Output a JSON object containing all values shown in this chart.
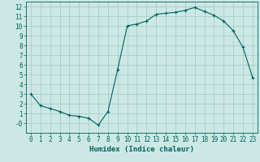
{
  "xlabel": "Humidex (Indice chaleur)",
  "ylabel": "",
  "background_color": "#cce8e4",
  "grid_color": "#aaccca",
  "line_color": "#006060",
  "marker_color": "#006060",
  "xlim": [
    -0.5,
    23.5
  ],
  "ylim": [
    -1.0,
    12.5
  ],
  "yticks": [
    0,
    1,
    2,
    3,
    4,
    5,
    6,
    7,
    8,
    9,
    10,
    11,
    12
  ],
  "xticks": [
    0,
    1,
    2,
    3,
    4,
    5,
    6,
    7,
    8,
    9,
    10,
    11,
    12,
    13,
    14,
    15,
    16,
    17,
    18,
    19,
    20,
    21,
    22,
    23
  ],
  "x": [
    0,
    1,
    2,
    3,
    4,
    5,
    6,
    7,
    8,
    9,
    10,
    11,
    12,
    13,
    14,
    15,
    16,
    17,
    18,
    19,
    20,
    21,
    22,
    23
  ],
  "y": [
    3.0,
    1.8,
    1.5,
    1.2,
    0.8,
    0.7,
    0.5,
    -0.2,
    1.2,
    5.5,
    10.0,
    10.2,
    10.5,
    11.2,
    11.3,
    11.4,
    11.6,
    11.9,
    11.5,
    11.1,
    10.5,
    9.5,
    7.8,
    4.7
  ]
}
